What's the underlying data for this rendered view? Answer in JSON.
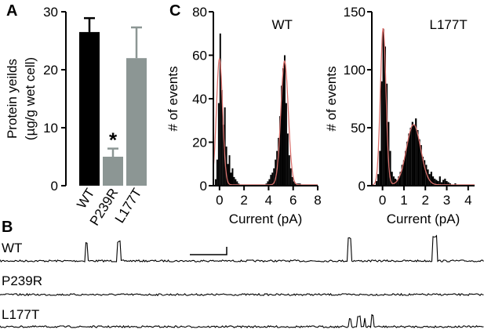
{
  "panels": {
    "a": "A",
    "b": "B",
    "c": "C"
  },
  "colors": {
    "ink": "#000000",
    "gray": "#8c9694",
    "fit": "#d9706c"
  },
  "chart_data": [
    {
      "id": "A",
      "type": "bar",
      "ylabel_line1": "Protein yeilds",
      "ylabel_line2": "(µg/g wet cell)",
      "categories": [
        "WT",
        "P239R",
        "L177T"
      ],
      "values": [
        26.5,
        5.0,
        22.0
      ],
      "errors": [
        2.4,
        1.4,
        5.3
      ],
      "ylim": [
        0,
        30
      ],
      "yticks": [
        0,
        10,
        20,
        30
      ],
      "bar_colors": [
        "#000000",
        "#8c9694",
        "#8c9694"
      ],
      "annotation": "*",
      "annotation_category": "P239R"
    },
    {
      "id": "C-WT",
      "type": "histogram",
      "title": "WT",
      "xlabel": "Current (pA)",
      "ylabel": "# of events",
      "xlim": [
        -0.5,
        8
      ],
      "ylim": [
        0,
        80
      ],
      "xticks": [
        0,
        2,
        4,
        6,
        8
      ],
      "yticks": [
        0,
        20,
        40,
        60,
        80
      ],
      "bin_width": 0.125,
      "bins_x": [
        -0.375,
        -0.25,
        -0.125,
        0,
        0.125,
        0.25,
        0.375,
        0.5,
        0.625,
        0.75,
        0.875,
        1,
        1.125,
        1.25,
        1.375,
        1.5,
        3.75,
        3.875,
        4,
        4.125,
        4.25,
        4.375,
        4.5,
        4.625,
        4.75,
        4.875,
        5,
        5.125,
        5.25,
        5.375,
        5.5,
        5.625,
        5.75,
        5.875,
        6,
        6.125,
        6.25,
        6.375,
        6.5
      ],
      "counts": [
        3,
        12,
        38,
        70,
        44,
        28,
        36,
        18,
        10,
        14,
        6,
        8,
        4,
        3,
        2,
        1,
        1,
        2,
        3,
        5,
        6,
        8,
        12,
        16,
        22,
        32,
        46,
        54,
        60,
        38,
        24,
        14,
        8,
        4,
        2,
        1,
        1,
        1,
        1
      ],
      "fit_peaks": [
        {
          "mu": 0.0,
          "sigma": 0.25,
          "amp": 58
        },
        {
          "mu": 5.3,
          "sigma": 0.3,
          "amp": 57
        }
      ]
    },
    {
      "id": "C-L177T",
      "type": "histogram",
      "title": "L177T",
      "xlabel": "Current (pA)",
      "ylabel": "# of events",
      "xlim": [
        -0.5,
        4.3
      ],
      "ylim": [
        0,
        150
      ],
      "xticks": [
        0,
        1,
        2,
        3,
        4
      ],
      "yticks": [
        0,
        50,
        100,
        150
      ],
      "bin_width": 0.08,
      "bins_x": [
        -0.32,
        -0.24,
        -0.16,
        -0.08,
        0,
        0.08,
        0.16,
        0.24,
        0.32,
        0.4,
        0.48,
        0.56,
        0.64,
        0.72,
        0.8,
        0.88,
        0.96,
        1.04,
        1.12,
        1.2,
        1.28,
        1.36,
        1.44,
        1.52,
        1.6,
        1.68,
        1.76,
        1.84,
        1.92,
        2,
        2.08,
        2.16,
        2.24,
        2.32,
        2.4,
        2.48,
        2.56,
        2.64,
        2.72,
        2.8,
        2.88,
        2.96,
        3.04,
        3.12,
        3.2,
        3.28,
        3.36,
        3.44,
        3.52,
        3.6,
        3.68,
        3.76,
        3.84,
        3.92,
        4
      ],
      "counts": [
        4,
        10,
        30,
        90,
        135,
        120,
        88,
        55,
        30,
        12,
        8,
        6,
        5,
        8,
        12,
        18,
        22,
        30,
        38,
        45,
        50,
        55,
        52,
        58,
        48,
        40,
        35,
        25,
        22,
        18,
        14,
        10,
        12,
        8,
        6,
        5,
        4,
        8,
        3,
        5,
        6,
        4,
        3,
        2,
        1,
        1,
        2,
        1,
        1,
        1,
        0,
        1,
        0,
        1,
        1
      ],
      "fit_peaks": [
        {
          "mu": 0.03,
          "sigma": 0.13,
          "amp": 135
        },
        {
          "mu": 1.45,
          "sigma": 0.33,
          "amp": 52
        }
      ]
    }
  ],
  "traces": [
    {
      "label": "WT",
      "events": [
        {
          "t": 0.177,
          "dur": 0.004,
          "amp": 0.055
        },
        {
          "t": 0.243,
          "dur": 0.005,
          "amp": 0.058
        },
        {
          "t": 0.718,
          "dur": 0.007,
          "amp": 0.07
        },
        {
          "t": 0.737,
          "dur": 0.002,
          "amp": 0.03
        },
        {
          "t": 0.893,
          "dur": 0.01,
          "amp": 0.075
        },
        {
          "t": 0.64,
          "dur": 0.001,
          "amp": 0.018
        },
        {
          "t": 0.56,
          "dur": 0.001,
          "amp": 0.01
        }
      ]
    },
    {
      "label": "P239R",
      "events": []
    },
    {
      "label": "L177T",
      "events": [
        {
          "t": 0.372,
          "dur": 0.001,
          "amp": 0.012
        },
        {
          "t": 0.699,
          "dur": 0.001,
          "amp": 0.018
        },
        {
          "t": 0.722,
          "dur": 0.004,
          "amp": 0.025
        },
        {
          "t": 0.738,
          "dur": 0.006,
          "amp": 0.03
        },
        {
          "t": 0.752,
          "dur": 0.003,
          "amp": 0.028
        },
        {
          "t": 0.767,
          "dur": 0.004,
          "amp": 0.035
        },
        {
          "t": 0.778,
          "dur": 0.002,
          "amp": 0.03
        }
      ]
    }
  ]
}
